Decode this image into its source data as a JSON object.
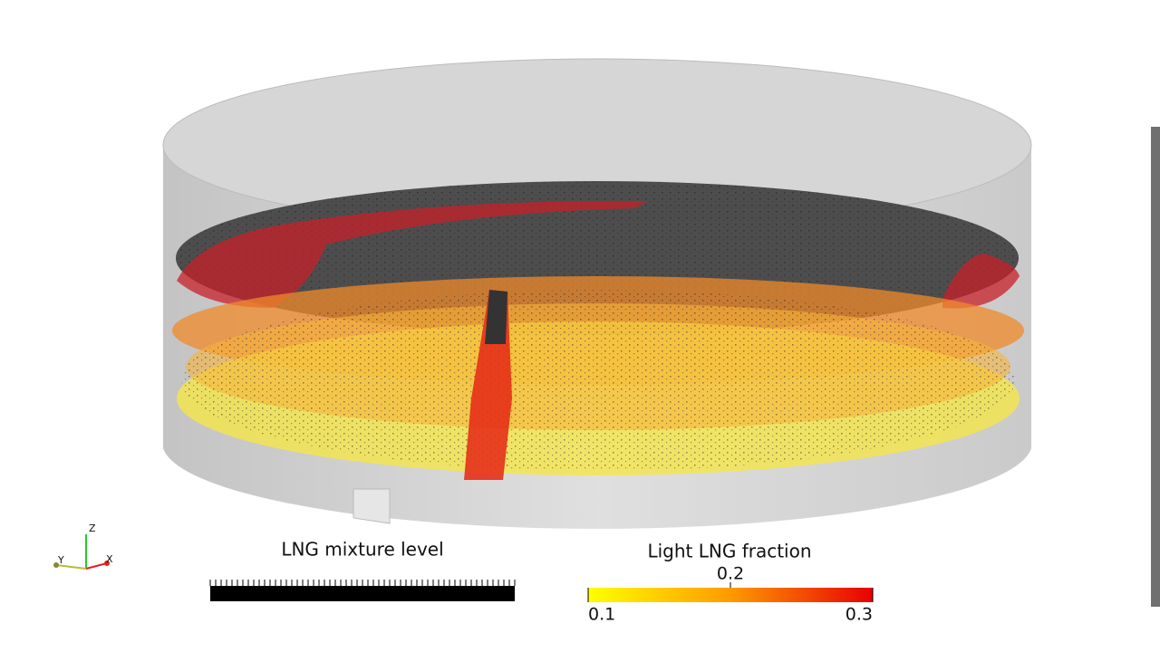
{
  "axes_triad": {
    "z": "Z",
    "y": "Y",
    "x": "X"
  },
  "mixture_bar": {
    "title": "LNG mixture level"
  },
  "colorbar": {
    "title": "Light LNG fraction",
    "ticks": [
      0.1,
      0.2,
      0.3
    ]
  }
}
